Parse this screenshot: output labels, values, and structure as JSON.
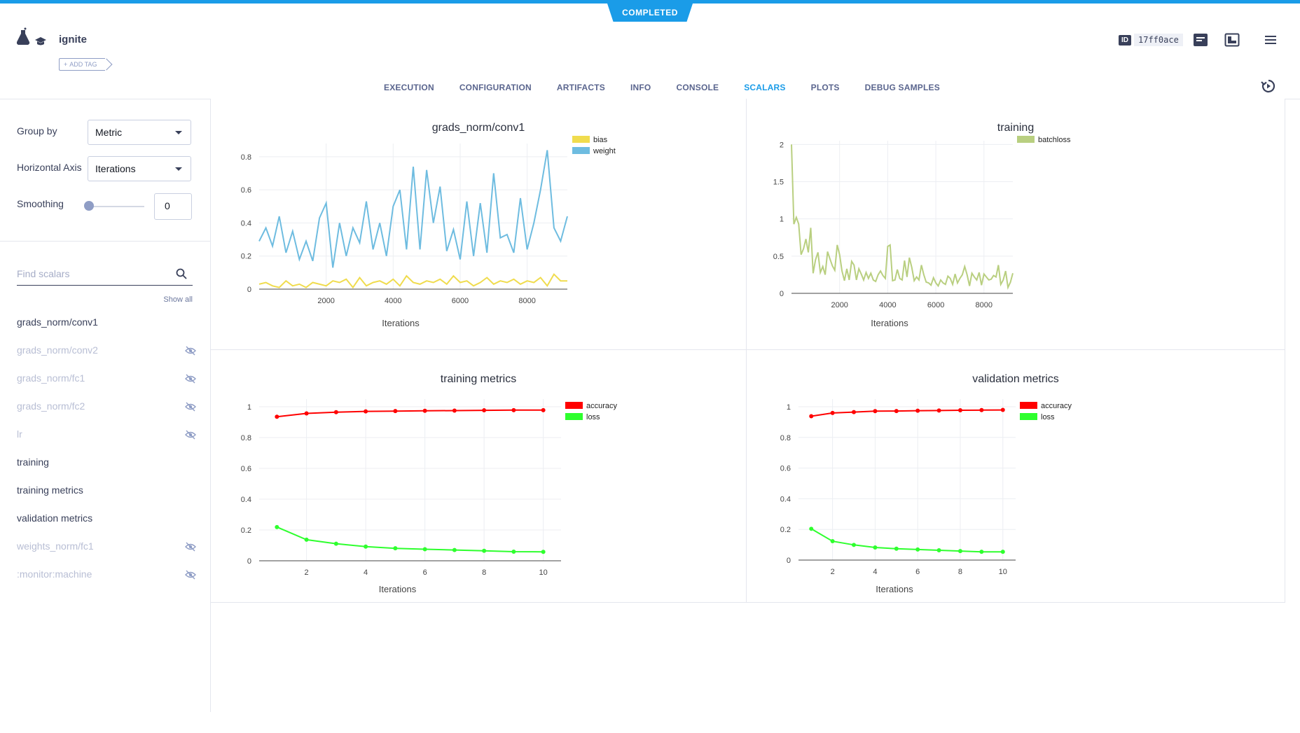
{
  "status": "COMPLETED",
  "task": {
    "name": "ignite",
    "add_tag_label": "ADD TAG",
    "id_label": "ID",
    "id_value": "17ff0ace"
  },
  "tabs": [
    {
      "label": "EXECUTION",
      "active": false
    },
    {
      "label": "CONFIGURATION",
      "active": false
    },
    {
      "label": "ARTIFACTS",
      "active": false
    },
    {
      "label": "INFO",
      "active": false
    },
    {
      "label": "CONSOLE",
      "active": false
    },
    {
      "label": "SCALARS",
      "active": true
    },
    {
      "label": "PLOTS",
      "active": false
    },
    {
      "label": "DEBUG SAMPLES",
      "active": false
    }
  ],
  "controls": {
    "group_by_label": "Group by",
    "group_by_value": "Metric",
    "horizontal_axis_label": "Horizontal Axis",
    "horizontal_axis_value": "Iterations",
    "smoothing_label": "Smoothing",
    "smoothing_value": "0",
    "search_placeholder": "Find scalars",
    "show_all_label": "Show all"
  },
  "metrics": [
    {
      "label": "grads_norm/conv1",
      "visible": true
    },
    {
      "label": "grads_norm/conv2",
      "visible": false
    },
    {
      "label": "grads_norm/fc1",
      "visible": false
    },
    {
      "label": "grads_norm/fc2",
      "visible": false
    },
    {
      "label": "lr",
      "visible": false
    },
    {
      "label": "training",
      "visible": true
    },
    {
      "label": "training metrics",
      "visible": true
    },
    {
      "label": "validation metrics",
      "visible": true
    },
    {
      "label": "weights_norm/fc1",
      "visible": false
    },
    {
      "label": ":monitor:machine",
      "visible": false
    }
  ],
  "chart_data": [
    {
      "type": "line",
      "title": "grads_norm/conv1",
      "xlabel": "Iterations",
      "ylabel": "",
      "xlim": [
        0,
        9200
      ],
      "ylim": [
        0,
        0.88
      ],
      "xticks": [
        2000,
        4000,
        6000,
        8000
      ],
      "yticks": [
        0,
        0.2,
        0.4,
        0.6,
        0.8
      ],
      "legend_position": "top-right",
      "series": [
        {
          "name": "bias",
          "color": "#f0dc4e",
          "x": [
            0,
            200,
            400,
            600,
            800,
            1000,
            1200,
            1400,
            1600,
            1800,
            2000,
            2200,
            2400,
            2600,
            2800,
            3000,
            3200,
            3400,
            3600,
            3800,
            4000,
            4200,
            4400,
            4600,
            4800,
            5000,
            5200,
            5400,
            5600,
            5800,
            6000,
            6200,
            6400,
            6600,
            6800,
            7000,
            7200,
            7400,
            7600,
            7800,
            8000,
            8200,
            8400,
            8600,
            8800,
            9000,
            9200
          ],
          "y": [
            0.03,
            0.04,
            0.02,
            0.01,
            0.05,
            0.02,
            0.03,
            0.01,
            0.04,
            0.03,
            0.02,
            0.05,
            0.04,
            0.06,
            0.01,
            0.07,
            0.02,
            0.04,
            0.05,
            0.03,
            0.06,
            0.02,
            0.08,
            0.04,
            0.03,
            0.05,
            0.04,
            0.06,
            0.03,
            0.08,
            0.04,
            0.05,
            0.02,
            0.04,
            0.07,
            0.03,
            0.05,
            0.04,
            0.06,
            0.03,
            0.05,
            0.04,
            0.07,
            0.02,
            0.09,
            0.05,
            0.05
          ]
        },
        {
          "name": "weight",
          "color": "#6ebce0",
          "x": [
            0,
            200,
            400,
            600,
            800,
            1000,
            1200,
            1400,
            1600,
            1800,
            2000,
            2200,
            2400,
            2600,
            2800,
            3000,
            3200,
            3400,
            3600,
            3800,
            4000,
            4200,
            4400,
            4600,
            4800,
            5000,
            5200,
            5400,
            5600,
            5800,
            6000,
            6200,
            6400,
            6600,
            6800,
            7000,
            7200,
            7400,
            7600,
            7800,
            8000,
            8200,
            8400,
            8600,
            8800,
            9000,
            9200
          ],
          "y": [
            0.29,
            0.37,
            0.26,
            0.44,
            0.22,
            0.35,
            0.18,
            0.29,
            0.17,
            0.43,
            0.52,
            0.13,
            0.4,
            0.2,
            0.37,
            0.28,
            0.53,
            0.24,
            0.4,
            0.2,
            0.5,
            0.6,
            0.24,
            0.74,
            0.24,
            0.72,
            0.4,
            0.62,
            0.23,
            0.36,
            0.18,
            0.53,
            0.2,
            0.52,
            0.22,
            0.7,
            0.31,
            0.33,
            0.22,
            0.55,
            0.24,
            0.4,
            0.6,
            0.84,
            0.37,
            0.29,
            0.44
          ]
        }
      ]
    },
    {
      "type": "line",
      "title": "training",
      "xlabel": "Iterations",
      "ylabel": "",
      "xlim": [
        0,
        9200
      ],
      "ylim": [
        0,
        2.05
      ],
      "xticks": [
        2000,
        4000,
        6000,
        8000
      ],
      "yticks": [
        0,
        0.5,
        1,
        1.5,
        2
      ],
      "legend_position": "top-right",
      "series": [
        {
          "name": "batchloss",
          "color": "#b9cf80",
          "x": [
            0,
            100,
            200,
            300,
            400,
            500,
            600,
            700,
            800,
            900,
            1000,
            1100,
            1200,
            1300,
            1400,
            1500,
            1600,
            1700,
            1800,
            1900,
            2000,
            2100,
            2200,
            2300,
            2400,
            2500,
            2600,
            2700,
            2800,
            2900,
            3000,
            3100,
            3200,
            3300,
            3400,
            3500,
            3600,
            3700,
            3800,
            3900,
            4000,
            4100,
            4200,
            4300,
            4400,
            4500,
            4600,
            4700,
            4800,
            4900,
            5000,
            5100,
            5200,
            5300,
            5400,
            5500,
            5600,
            5700,
            5800,
            5900,
            6000,
            6100,
            6200,
            6300,
            6400,
            6500,
            6600,
            6700,
            6800,
            6900,
            7000,
            7100,
            7200,
            7300,
            7400,
            7500,
            7600,
            7700,
            7800,
            7900,
            8000,
            8100,
            8200,
            8300,
            8400,
            8500,
            8600,
            8700,
            8800,
            8900,
            9000,
            9100,
            9200
          ],
          "y": [
            2.0,
            0.93,
            1.02,
            0.93,
            0.52,
            0.6,
            0.73,
            0.55,
            0.88,
            0.27,
            0.45,
            0.55,
            0.28,
            0.36,
            0.25,
            0.56,
            0.46,
            0.37,
            0.31,
            0.65,
            0.52,
            0.3,
            0.17,
            0.33,
            0.18,
            0.43,
            0.38,
            0.18,
            0.33,
            0.26,
            0.18,
            0.28,
            0.2,
            0.27,
            0.18,
            0.16,
            0.25,
            0.3,
            0.24,
            0.2,
            0.63,
            0.65,
            0.17,
            0.18,
            0.32,
            0.2,
            0.18,
            0.44,
            0.22,
            0.48,
            0.35,
            0.17,
            0.22,
            0.18,
            0.38,
            0.25,
            0.15,
            0.14,
            0.11,
            0.21,
            0.14,
            0.1,
            0.18,
            0.14,
            0.12,
            0.23,
            0.2,
            0.12,
            0.26,
            0.14,
            0.2,
            0.25,
            0.36,
            0.25,
            0.1,
            0.27,
            0.22,
            0.18,
            0.28,
            0.11,
            0.26,
            0.22,
            0.18,
            0.19,
            0.24,
            0.22,
            0.38,
            0.12,
            0.18,
            0.3,
            0.08,
            0.15,
            0.27
          ]
        }
      ]
    },
    {
      "type": "line",
      "title": "training metrics",
      "xlabel": "Iterations",
      "ylabel": "",
      "xlim": [
        0.4,
        10.6
      ],
      "ylim": [
        0,
        1.05
      ],
      "xticks": [
        2,
        4,
        6,
        8,
        10
      ],
      "yticks": [
        0,
        0.2,
        0.4,
        0.6,
        0.8,
        1
      ],
      "legend_position": "top-right",
      "series": [
        {
          "name": "accuracy",
          "color": "#ff0000",
          "x": [
            1,
            2,
            3,
            4,
            5,
            6,
            7,
            8,
            9,
            10
          ],
          "y": [
            0.935,
            0.957,
            0.965,
            0.97,
            0.972,
            0.974,
            0.975,
            0.977,
            0.978,
            0.978
          ]
        },
        {
          "name": "loss",
          "color": "#2eff2e",
          "x": [
            1,
            2,
            3,
            4,
            5,
            6,
            7,
            8,
            9,
            10
          ],
          "y": [
            0.219,
            0.137,
            0.111,
            0.092,
            0.081,
            0.075,
            0.07,
            0.065,
            0.059,
            0.058
          ]
        }
      ]
    },
    {
      "type": "line",
      "title": "validation metrics",
      "xlabel": "Iterations",
      "ylabel": "",
      "xlim": [
        0.4,
        10.6
      ],
      "ylim": [
        0,
        1.05
      ],
      "xticks": [
        2,
        4,
        6,
        8,
        10
      ],
      "yticks": [
        0,
        0.2,
        0.4,
        0.6,
        0.8,
        1
      ],
      "legend_position": "top-right",
      "series": [
        {
          "name": "accuracy",
          "color": "#ff0000",
          "x": [
            1,
            2,
            3,
            4,
            5,
            6,
            7,
            8,
            9,
            10
          ],
          "y": [
            0.938,
            0.959,
            0.965,
            0.971,
            0.972,
            0.974,
            0.975,
            0.977,
            0.978,
            0.979
          ]
        },
        {
          "name": "loss",
          "color": "#2eff2e",
          "x": [
            1,
            2,
            3,
            4,
            5,
            6,
            7,
            8,
            9,
            10
          ],
          "y": [
            0.204,
            0.123,
            0.099,
            0.082,
            0.074,
            0.069,
            0.064,
            0.059,
            0.054,
            0.054
          ]
        }
      ]
    }
  ]
}
